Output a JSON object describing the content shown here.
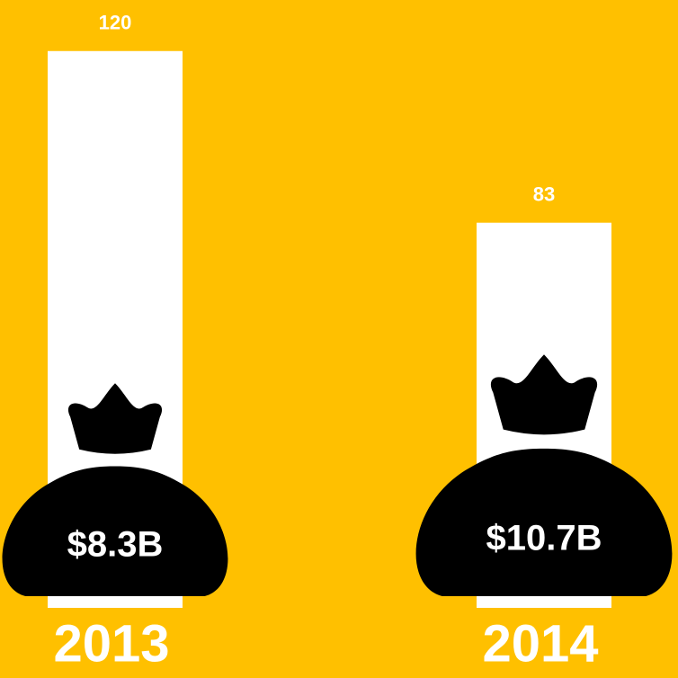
{
  "chart_data": {
    "type": "bar",
    "categories": [
      "2013",
      "2014"
    ],
    "values": [
      120,
      83
    ],
    "color": "#ffffff",
    "ylim": [
      0,
      131
    ],
    "bag_values": [
      8.3,
      10.7
    ],
    "bag_value_labels": [
      "$8.3B",
      "$10.7B"
    ],
    "bag_color": "#000000",
    "background": "#ffc000"
  }
}
